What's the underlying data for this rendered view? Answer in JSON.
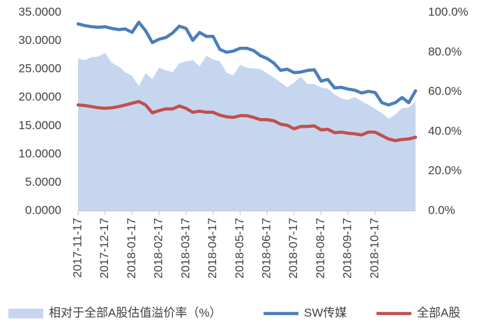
{
  "chart_data": {
    "type": "line",
    "categories": [
      "2017-11-17",
      null,
      null,
      null,
      "2017-12-17",
      null,
      null,
      null,
      "2018-01-17",
      null,
      null,
      null,
      "2018-02-17",
      null,
      null,
      null,
      "2018-03-17",
      null,
      null,
      null,
      "2018-04-17",
      null,
      null,
      null,
      "2018-05-17",
      null,
      null,
      null,
      "2018-06-17",
      null,
      null,
      null,
      "2018-07-17",
      null,
      null,
      null,
      "2018-08-17",
      null,
      null,
      null,
      "2018-09-17",
      null,
      null,
      null,
      "2018-10-17",
      null,
      null,
      null,
      null,
      null,
      null
    ],
    "series": [
      {
        "name": "相对于全部A股估值溢价率（%）",
        "type": "area",
        "axis": "y2",
        "color": "#c6d6ef",
        "values": [
          76.8,
          76,
          77.5,
          77.8,
          79.6,
          74.6,
          72.9,
          70,
          68,
          63,
          69.4,
          66.5,
          72.2,
          70.8,
          70,
          74.3,
          75.4,
          76,
          72.9,
          78.2,
          76.4,
          75.4,
          69.7,
          68.3,
          73.6,
          72.2,
          71.8,
          71.5,
          69.4,
          67.3,
          64.8,
          62.3,
          64.8,
          67.6,
          64,
          64,
          62.3,
          61.6,
          58.8,
          56.7,
          56,
          57.4,
          55.3,
          53.5,
          51.4,
          49.3,
          46.5,
          48.6,
          51.8,
          52.1,
          55.3
        ]
      },
      {
        "name": "SW传媒",
        "type": "line",
        "color": "#4a7ebb",
        "values": [
          33.0,
          32.7,
          32.5,
          32.4,
          32.5,
          32.2,
          32.0,
          32.1,
          31.5,
          33.3,
          31.8,
          29.7,
          30.3,
          30.6,
          31.4,
          32.6,
          32.2,
          30.1,
          31.5,
          30.8,
          30.8,
          28.5,
          28.0,
          28.2,
          28.7,
          28.7,
          28.3,
          27.4,
          26.9,
          26.1,
          24.8,
          25.0,
          24.4,
          24.5,
          24.8,
          24.9,
          22.9,
          23.2,
          21.7,
          21.8,
          21.5,
          21.3,
          20.8,
          21.1,
          20.9,
          19.1,
          18.7,
          19.1,
          20.0,
          19.1,
          21.2
        ]
      },
      {
        "name": "全部A股",
        "type": "line",
        "color": "#c0504d",
        "values": [
          18.7,
          18.6,
          18.4,
          18.2,
          18.1,
          18.2,
          18.4,
          18.7,
          19.0,
          19.3,
          18.7,
          17.3,
          17.7,
          18.0,
          18.0,
          18.5,
          18.1,
          17.4,
          17.6,
          17.4,
          17.4,
          16.9,
          16.6,
          16.5,
          16.8,
          16.8,
          16.5,
          16.1,
          16.1,
          15.9,
          15.3,
          15.1,
          14.5,
          14.9,
          14.9,
          15.0,
          14.3,
          14.4,
          13.8,
          13.9,
          13.7,
          13.6,
          13.4,
          13.9,
          13.9,
          13.3,
          12.7,
          12.4,
          12.6,
          12.7,
          13.0
        ]
      }
    ],
    "ylim": [
      0,
      35
    ],
    "yticks": [
      {
        "value": 0,
        "label": "0.0000"
      },
      {
        "value": 5,
        "label": "5.0000"
      },
      {
        "value": 10,
        "label": "10.0000"
      },
      {
        "value": 15,
        "label": "15.0000"
      },
      {
        "value": 20,
        "label": "20.0000"
      },
      {
        "value": 25,
        "label": "25.0000"
      },
      {
        "value": 30,
        "label": "30.0000"
      },
      {
        "value": 35,
        "label": "35.0000"
      }
    ],
    "y2lim": [
      0,
      100
    ],
    "y2ticks": [
      {
        "value": 0,
        "label": "0.0%"
      },
      {
        "value": 20,
        "label": "20.0%"
      },
      {
        "value": 40,
        "label": "40.0%"
      },
      {
        "value": 60,
        "label": "60.0%"
      },
      {
        "value": 80,
        "label": "80.0%"
      },
      {
        "value": 100,
        "label": "100.0%"
      }
    ],
    "legend": "bottom",
    "grid": false
  }
}
